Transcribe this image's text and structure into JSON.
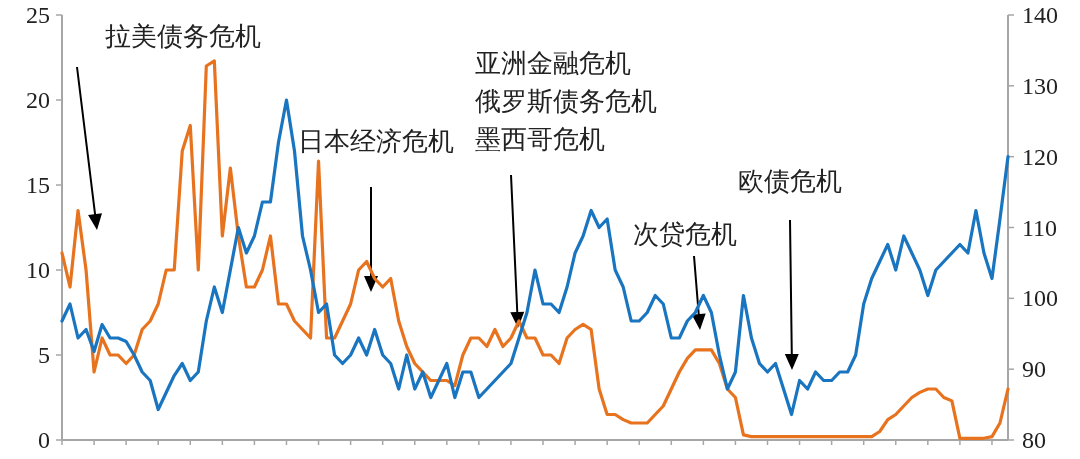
{
  "chart_data": {
    "type": "line",
    "categories": [
      null,
      null,
      null,
      null,
      null,
      null,
      null,
      null,
      null,
      null,
      null,
      null,
      null,
      null,
      null,
      null,
      null,
      null,
      null,
      null,
      null,
      null,
      null,
      null,
      null,
      null,
      null,
      null,
      null,
      null,
      null,
      null,
      null,
      null,
      null,
      null,
      null,
      null,
      null,
      null,
      null,
      null,
      null,
      null,
      null,
      null,
      null,
      null,
      null,
      null,
      null,
      null,
      null,
      null,
      null,
      null,
      null,
      null,
      null,
      null,
      null,
      null,
      null,
      null,
      null,
      null,
      null,
      null,
      null,
      null,
      null,
      null,
      null,
      null,
      null,
      null,
      null,
      null,
      null,
      null,
      null,
      null,
      null,
      null,
      null,
      null,
      null,
      null,
      null,
      null,
      null,
      null,
      null,
      null,
      null,
      null,
      null,
      null,
      null,
      null,
      null,
      null,
      null,
      null,
      null,
      null,
      null,
      null,
      null,
      null,
      null,
      null,
      null,
      null,
      null,
      null,
      null,
      null,
      null
    ],
    "series": [
      {
        "color": "#e8731e",
        "values": [
          11,
          9,
          13.5,
          10,
          4,
          6,
          5,
          5,
          4.5,
          5,
          6.5,
          7,
          8,
          10,
          10,
          17,
          18.5,
          10,
          22,
          22.3,
          12,
          16,
          12,
          9,
          9,
          10,
          12,
          8,
          8,
          7,
          6.5,
          6,
          16.4,
          6,
          6,
          7,
          8,
          10,
          10.5,
          9.5,
          9,
          9.5,
          7,
          5.5,
          4.5,
          4,
          3.5,
          3.5,
          3.5,
          3.2,
          5,
          6,
          6,
          5.5,
          6.5,
          5.5,
          6,
          7,
          6,
          6,
          5,
          5,
          4.5,
          6,
          6.5,
          6.8,
          6.5,
          3,
          1.5,
          1.5,
          1.2,
          1,
          1,
          1,
          1.5,
          2,
          3,
          4,
          4.8,
          5.3,
          5.3,
          5.3,
          4.5,
          3,
          2.5,
          0.3,
          0.2,
          0.2,
          0.2,
          0.2,
          0.2,
          0.2,
          0.2,
          0.2,
          0.2,
          0.2,
          0.2,
          0.2,
          0.2,
          0.2,
          0.2,
          0.2,
          0.5,
          1.2,
          1.5,
          2,
          2.5,
          2.8,
          3,
          3,
          2.5,
          2.3,
          0.1,
          0.1,
          0.1,
          0.1,
          0.2,
          1,
          3
        ]
      },
      {
        "color": "#1a75c0",
        "axis": "y2",
        "values": [
          96.8,
          99.2,
          94.4,
          95.6,
          92.5,
          96.3,
          94.4,
          94.4,
          93.9,
          92,
          89.6,
          88.4,
          84.3,
          86.7,
          89.1,
          90.8,
          88.4,
          89.6,
          96.8,
          101.6,
          98,
          104,
          110,
          106.4,
          108.8,
          113.6,
          113.6,
          122,
          128,
          120.8,
          108.8,
          104,
          98,
          99.2,
          92,
          90.8,
          92,
          94.4,
          92,
          95.6,
          92,
          90.8,
          87.2,
          92,
          87.2,
          89.6,
          86,
          88.4,
          90.8,
          86,
          89.6,
          89.6,
          86,
          87.2,
          88.4,
          89.6,
          90.8,
          94.4,
          98,
          104,
          99.2,
          99.2,
          98,
          101.6,
          106.4,
          108.8,
          112.4,
          110,
          111.2,
          104,
          101.6,
          96.8,
          96.8,
          98,
          100.4,
          99.2,
          94.4,
          94.4,
          96.8,
          98,
          100.4,
          98,
          92,
          87.2,
          89.6,
          100.4,
          94.4,
          90.8,
          89.6,
          90.8,
          87.2,
          83.6,
          88.4,
          87.2,
          89.6,
          88.4,
          88.4,
          89.6,
          89.6,
          92,
          99.2,
          102.8,
          105.2,
          107.6,
          104,
          108.8,
          106.4,
          104,
          100.4,
          104,
          105.2,
          106.4,
          107.6,
          106.4,
          112.4,
          106.4,
          102.8,
          111.2,
          120
        ]
      }
    ],
    "ylim": [
      0,
      25
    ],
    "yticks": [
      0,
      5,
      10,
      15,
      20,
      25
    ],
    "y2lim": [
      80,
      140
    ],
    "y2ticks": [
      80,
      90,
      100,
      110,
      120,
      130,
      140
    ],
    "annotations": [
      "拉美债务危机",
      "日本经济危机",
      "亚洲金融危机",
      "俄罗斯债务危机",
      "墨西哥危机",
      "次贷危机",
      "欧债危机"
    ]
  }
}
